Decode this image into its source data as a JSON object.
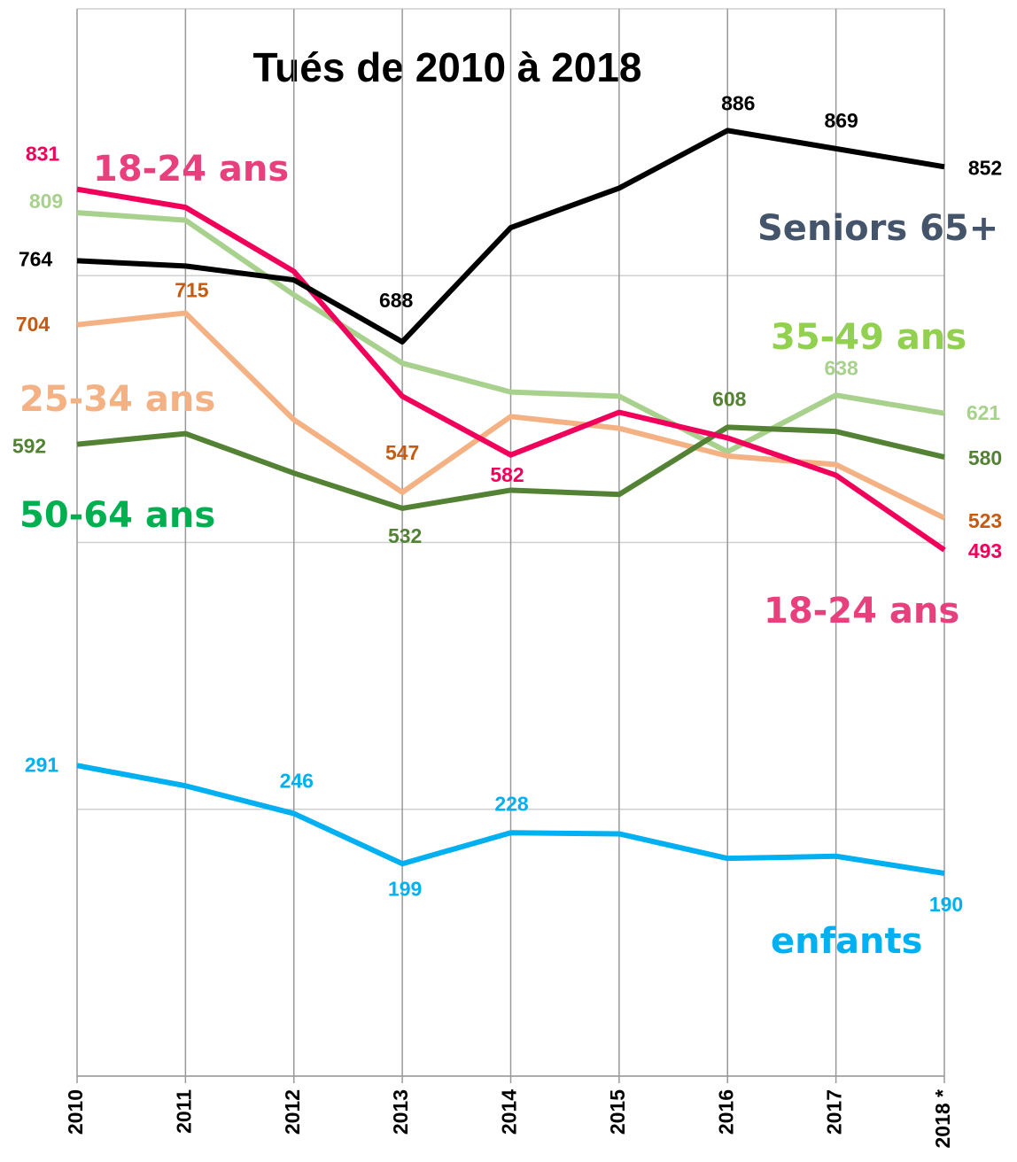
{
  "chart_data": {
    "type": "line",
    "title": "Tués de 2010 à 2018",
    "categories": [
      "2010",
      "2011",
      "2012",
      "2013",
      "2014",
      "2015",
      "2016",
      "2017",
      "2018 *"
    ],
    "ylim": [
      0,
      1000
    ],
    "yticks": [
      0,
      250,
      500,
      750,
      1000
    ],
    "grid": true,
    "series": [
      {
        "name": "Seniors 65+",
        "color": "#000000",
        "label_color": "#44546a",
        "values": [
          764,
          759,
          746,
          688,
          795,
          832,
          886,
          869,
          852
        ],
        "labeled_points": [
          0,
          3,
          6,
          7,
          8
        ]
      },
      {
        "name": "18-24 ans",
        "color": "#f0005a",
        "label_color": "#e8407c",
        "values": [
          831,
          814,
          754,
          637,
          582,
          622,
          598,
          563,
          493
        ],
        "labeled_points": [
          0,
          4,
          8
        ]
      },
      {
        "name": "35-49 ans",
        "color": "#a9d18e",
        "label_color": "#92d050",
        "values": [
          809,
          802,
          732,
          668,
          641,
          637,
          585,
          638,
          621
        ],
        "labeled_points": [
          0,
          7,
          8
        ]
      },
      {
        "name": "25-34 ans",
        "color": "#f4b183",
        "label_color": "#f4b183",
        "values": [
          704,
          715,
          615,
          547,
          618,
          607,
          581,
          573,
          523
        ],
        "labeled_points": [
          0,
          1,
          3,
          8
        ]
      },
      {
        "name": "50-64 ans",
        "color": "#548235",
        "label_color": "#00b050",
        "values": [
          592,
          602,
          565,
          532,
          549,
          545,
          608,
          604,
          580
        ],
        "labeled_points": [
          0,
          3,
          6,
          8
        ]
      },
      {
        "name": "enfants",
        "color": "#00b0f0",
        "label_color": "#00b0f0",
        "values": [
          291,
          272,
          246,
          199,
          228,
          227,
          204,
          206,
          190
        ],
        "labeled_points": [
          0,
          2,
          3,
          4,
          8
        ]
      }
    ]
  }
}
